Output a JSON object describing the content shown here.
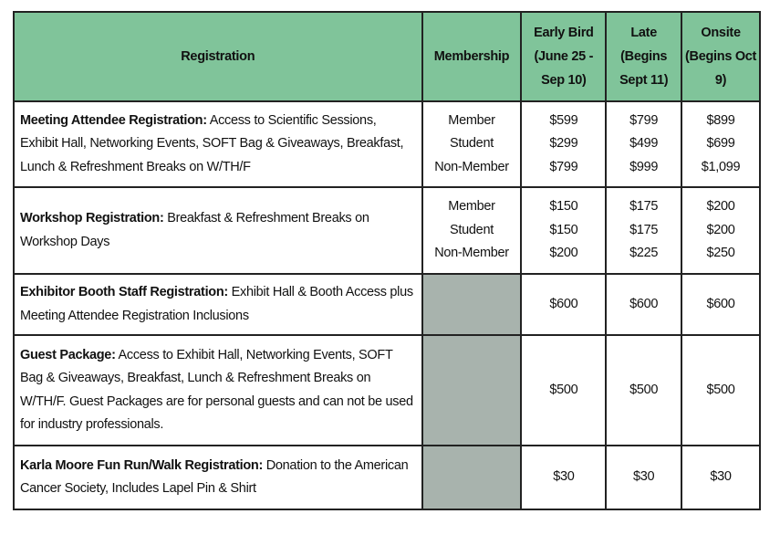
{
  "header": {
    "registration": "Registration",
    "membership": "Membership",
    "early": "Early Bird (June 25 - Sep 10)",
    "late": "Late (Begins Sept 11)",
    "onsite": "Onsite (Begins Oct 9)"
  },
  "colors": {
    "header_bg": "#80c49a",
    "empty_cell": "#a8b3ad"
  },
  "rows": [
    {
      "title": "Meeting Attendee Registration:",
      "desc": " Access to Scientific Sessions, Exhibit Hall, Networking Events, SOFT Bag & Giveaways, Breakfast, Lunch & Refreshment Breaks on W/TH/F",
      "members": [
        "Member",
        "Student",
        "Non-Member"
      ],
      "early": [
        "$599",
        "$299",
        "$799"
      ],
      "late": [
        "$799",
        "$499",
        "$999"
      ],
      "onsite": [
        "$899",
        "$699",
        "$1,099"
      ]
    },
    {
      "title": "Workshop Registration:",
      "desc": " Breakfast & Refreshment Breaks on Workshop Days",
      "members": [
        "Member",
        "Student",
        "Non-Member"
      ],
      "early": [
        "$150",
        "$150",
        "$200"
      ],
      "late": [
        "$175",
        "$175",
        "$225"
      ],
      "onsite": [
        "$200",
        "$200",
        "$250"
      ]
    },
    {
      "title": "Exhibitor Booth Staff Registration:",
      "desc": " Exhibit Hall & Booth Access plus Meeting Attendee Registration Inclusions",
      "early": "$600",
      "late": "$600",
      "onsite": "$600"
    },
    {
      "title": "Guest Package:",
      "desc": " Access to Exhibit Hall, Networking Events, SOFT Bag & Giveaways, Breakfast, Lunch & Refreshment Breaks on W/TH/F. Guest Packages are for personal guests and can not be used for industry professionals.",
      "early": "$500",
      "late": "$500",
      "onsite": "$500"
    },
    {
      "title": "Karla Moore Fun Run/Walk Registration:",
      "desc": " Donation to the American Cancer Society, Includes Lapel Pin & Shirt",
      "early": "$30",
      "late": "$30",
      "onsite": "$30"
    }
  ]
}
